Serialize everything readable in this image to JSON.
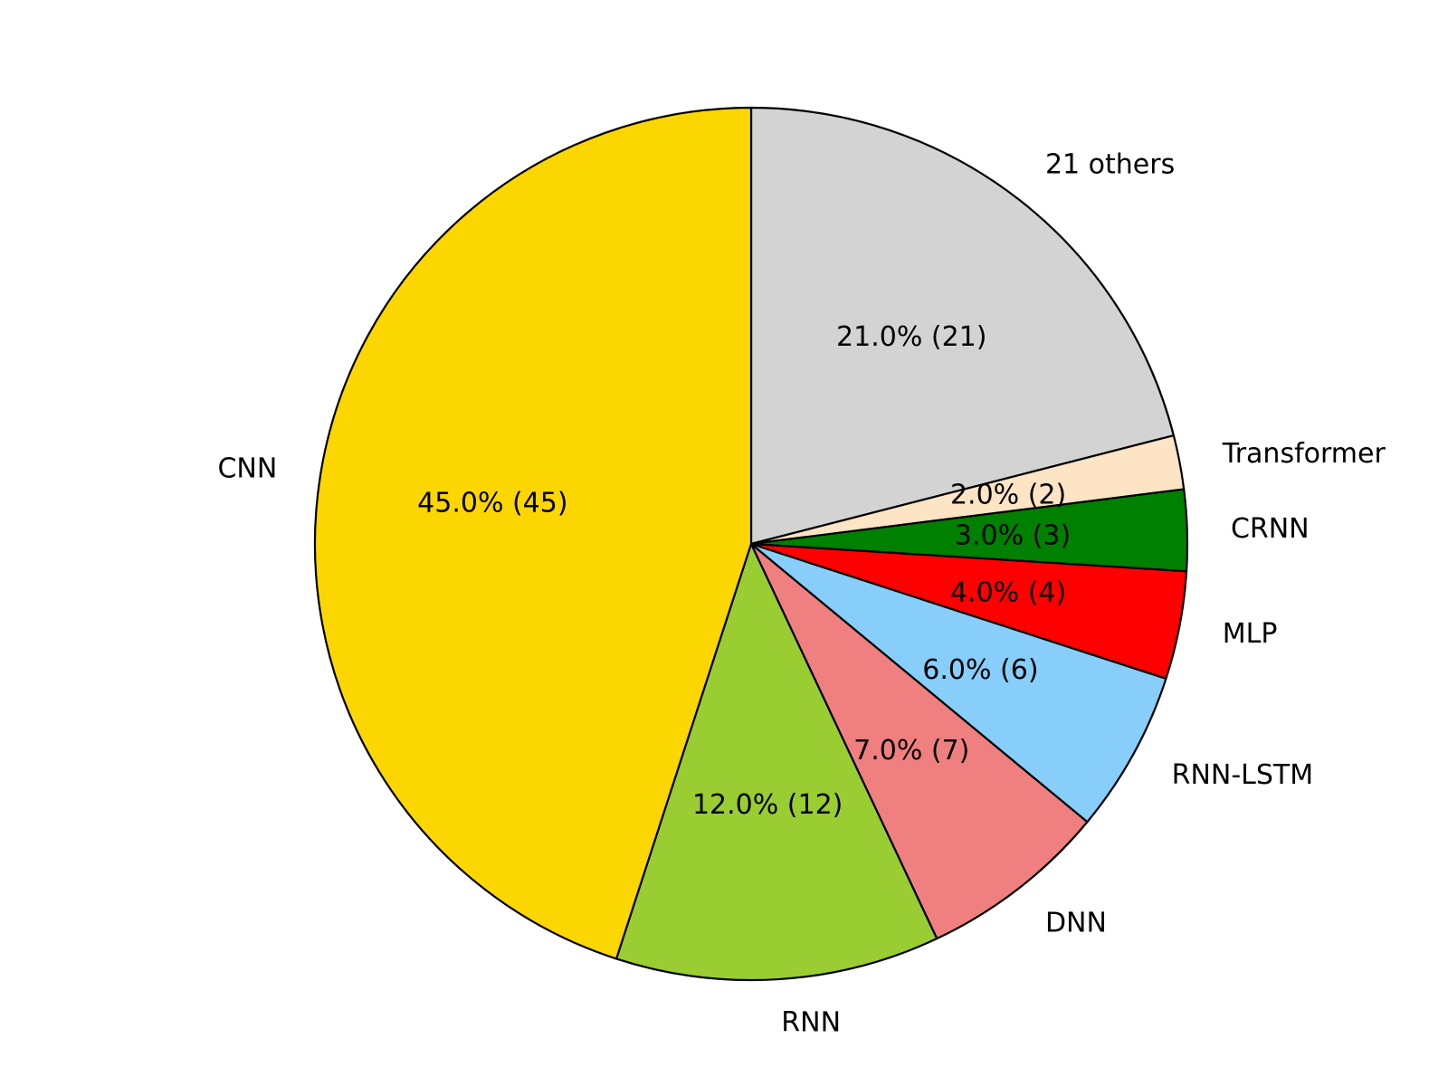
{
  "chart_data": {
    "type": "pie",
    "title": "",
    "start_angle_deg": 90,
    "direction": "clockwise",
    "pct_decimals": 1,
    "legend": "none",
    "slices": [
      {
        "label": "21 others",
        "value": 21,
        "pct_label": "21.0%  (21)",
        "color": "#d3d3d3"
      },
      {
        "label": "Transformer",
        "value": 2,
        "pct_label": "2.0%  (2)",
        "color": "#fde4c4"
      },
      {
        "label": "CRNN",
        "value": 3,
        "pct_label": "3.0%  (3)",
        "color": "#008000"
      },
      {
        "label": "MLP",
        "value": 4,
        "pct_label": "4.0%  (4)",
        "color": "#ff0000"
      },
      {
        "label": "RNN-LSTM",
        "value": 6,
        "pct_label": "6.0%  (6)",
        "color": "#87cefa"
      },
      {
        "label": "DNN",
        "value": 7,
        "pct_label": "7.0%  (7)",
        "color": "#f08080"
      },
      {
        "label": "RNN",
        "value": 12,
        "pct_label": "12.0%  (12)",
        "color": "#9acd32"
      },
      {
        "label": "CNN",
        "value": 45,
        "pct_label": "45.0%  (45)",
        "color": "#fcd600"
      }
    ]
  }
}
